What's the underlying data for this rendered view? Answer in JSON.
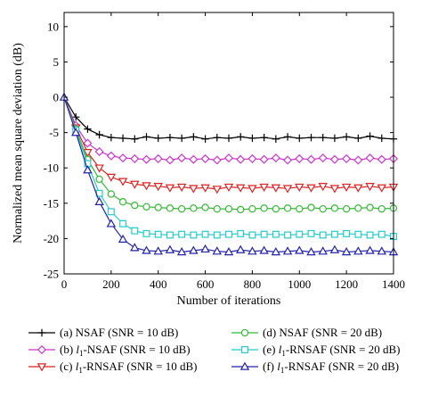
{
  "chart_data": {
    "type": "line",
    "title": "",
    "xlabel": "Number of iterations",
    "ylabel": "Normalized mean square deviation (dB)",
    "xlim": [
      0,
      1400
    ],
    "ylim": [
      -25,
      12
    ],
    "xticks": [
      0,
      200,
      400,
      600,
      800,
      1000,
      1200,
      1400
    ],
    "yticks": [
      10,
      5,
      0,
      -5,
      -10,
      -15,
      -20,
      -25
    ],
    "x": [
      0,
      50,
      100,
      150,
      200,
      250,
      300,
      350,
      400,
      450,
      500,
      550,
      600,
      650,
      700,
      750,
      800,
      850,
      900,
      950,
      1000,
      1050,
      1100,
      1150,
      1200,
      1250,
      1300,
      1350,
      1400
    ],
    "grid": false,
    "legend_position": "bottom",
    "series": [
      {
        "name": "(a) NSAF (SNR = 10 dB)",
        "label_prefix": "(a) NSAF",
        "label_snr": "(SNR = 10 dB)",
        "color": "#000000",
        "marker": "plus",
        "values": [
          0,
          -2.8,
          -4.5,
          -5.3,
          -5.7,
          -5.8,
          -5.9,
          -5.6,
          -5.8,
          -5.7,
          -5.8,
          -5.6,
          -5.9,
          -5.7,
          -5.8,
          -5.6,
          -5.8,
          -5.7,
          -5.9,
          -5.6,
          -5.8,
          -5.7,
          -5.7,
          -5.8,
          -5.6,
          -5.8,
          -5.5,
          -5.8,
          -5.9
        ]
      },
      {
        "name": "(b) l1-NSAF (SNR = 10 dB)",
        "label_prefix": "(b) ",
        "label_math": "l",
        "label_sub": "1",
        "label_rest": "-NSAF",
        "label_snr": "(SNR = 10 dB)",
        "color": "#cc33cc",
        "marker": "diamond",
        "values": [
          0,
          -4.0,
          -6.5,
          -7.7,
          -8.3,
          -8.6,
          -8.7,
          -8.8,
          -8.7,
          -8.9,
          -8.6,
          -8.8,
          -8.7,
          -8.9,
          -8.6,
          -8.8,
          -8.7,
          -8.8,
          -8.6,
          -8.9,
          -8.7,
          -8.8,
          -8.6,
          -8.8,
          -8.7,
          -8.9,
          -8.6,
          -8.8,
          -8.7
        ]
      },
      {
        "name": "(c) l1-RNSAF (SNR = 10 dB)",
        "label_prefix": "(c) ",
        "label_math": "l",
        "label_sub": "1",
        "label_rest": "-RNSAF",
        "label_snr": "(SNR = 10 dB)",
        "color": "#dd2222",
        "marker": "triangle-down",
        "values": [
          0,
          -4.3,
          -7.8,
          -10.0,
          -11.3,
          -11.9,
          -12.3,
          -12.5,
          -12.6,
          -12.8,
          -12.7,
          -12.9,
          -12.8,
          -13.0,
          -12.7,
          -12.8,
          -12.9,
          -12.7,
          -12.8,
          -12.9,
          -12.7,
          -12.8,
          -12.6,
          -12.9,
          -12.7,
          -12.8,
          -12.6,
          -12.8,
          -12.7
        ]
      },
      {
        "name": "(d) NSAF (SNR = 20 dB)",
        "label_prefix": "(d) NSAF",
        "label_snr": "(SNR = 20 dB)",
        "color": "#33bb33",
        "marker": "circle",
        "values": [
          0,
          -4.5,
          -8.8,
          -11.6,
          -13.7,
          -14.8,
          -15.3,
          -15.5,
          -15.6,
          -15.7,
          -15.8,
          -15.7,
          -15.6,
          -15.8,
          -15.8,
          -15.9,
          -15.8,
          -15.7,
          -15.8,
          -15.7,
          -15.8,
          -15.6,
          -15.8,
          -15.7,
          -15.8,
          -15.7,
          -15.6,
          -15.8,
          -15.7
        ]
      },
      {
        "name": "(e) l1-RNSAF (SNR = 20 dB)",
        "label_prefix": "(e) ",
        "label_math": "l",
        "label_sub": "1",
        "label_rest": "-RNSAF",
        "label_snr": "(SNR = 20 dB)",
        "color": "#22cccc",
        "marker": "square",
        "values": [
          0,
          -4.7,
          -9.4,
          -13.6,
          -16.2,
          -17.9,
          -18.9,
          -19.3,
          -19.4,
          -19.5,
          -19.4,
          -19.5,
          -19.4,
          -19.5,
          -19.4,
          -19.3,
          -19.5,
          -19.4,
          -19.4,
          -19.5,
          -19.4,
          -19.3,
          -19.5,
          -19.4,
          -19.3,
          -19.4,
          -19.5,
          -19.4,
          -19.7
        ]
      },
      {
        "name": "(f) l1-RNSAF (SNR = 20 dB)",
        "label_prefix": "(f) ",
        "label_math": "l",
        "label_sub": "1",
        "label_rest": "-RNSAF",
        "label_snr": "(SNR = 20 dB)",
        "color": "#2222aa",
        "marker": "triangle-up",
        "values": [
          0,
          -5.0,
          -10.3,
          -14.8,
          -17.9,
          -20.1,
          -21.3,
          -21.7,
          -21.8,
          -21.6,
          -21.9,
          -21.7,
          -21.5,
          -21.8,
          -21.9,
          -21.6,
          -21.8,
          -21.7,
          -21.9,
          -21.8,
          -21.7,
          -21.9,
          -21.8,
          -21.6,
          -21.9,
          -21.8,
          -21.7,
          -21.8,
          -21.9
        ]
      }
    ]
  }
}
